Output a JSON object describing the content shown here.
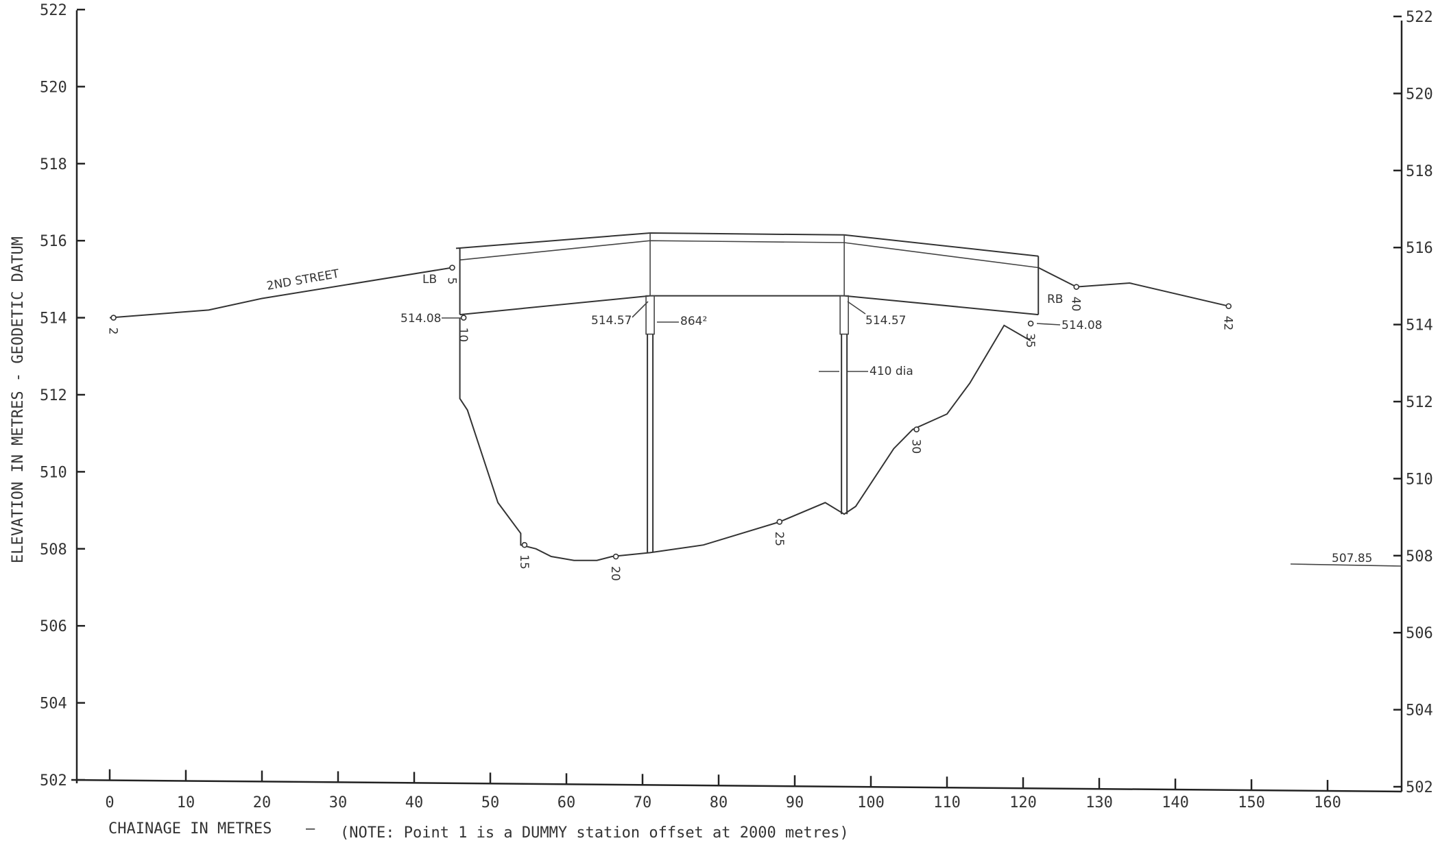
{
  "chart_data": {
    "type": "line",
    "xlabel": "CHAINAGE IN METRES",
    "xlabel_separator": "–",
    "note": "(NOTE: Point 1 is a DUMMY station offset at 2000 metres)",
    "ylabel": "ELEVATION IN METRES - GEODETIC DATUM",
    "xlim": [
      0,
      170
    ],
    "ylim": [
      502,
      522
    ],
    "x_ticks": [
      "0",
      "10",
      "20",
      "30",
      "40",
      "50",
      "60",
      "70",
      "80",
      "90",
      "100",
      "110",
      "120",
      "130",
      "140",
      "150",
      "160"
    ],
    "y_ticks": [
      "502",
      "504",
      "506",
      "508",
      "510",
      "512",
      "514",
      "516",
      "518",
      "520",
      "522"
    ],
    "ground_profile": [
      {
        "x": 0,
        "y": 514.0
      },
      {
        "x": 13,
        "y": 514.2
      },
      {
        "x": 20,
        "y": 514.5
      },
      {
        "x": 45,
        "y": 515.3
      }
    ],
    "right_bank_profile": [
      {
        "x": 122,
        "y": 515.3
      },
      {
        "x": 127,
        "y": 514.8
      },
      {
        "x": 134,
        "y": 514.9
      },
      {
        "x": 147,
        "y": 514.3
      }
    ],
    "channel_profile": [
      {
        "x": 46,
        "y": 514.0
      },
      {
        "x": 46,
        "y": 511.9
      },
      {
        "x": 47,
        "y": 511.6
      },
      {
        "x": 51,
        "y": 509.2
      },
      {
        "x": 54,
        "y": 508.4
      },
      {
        "x": 54,
        "y": 508.1
      },
      {
        "x": 56,
        "y": 508.0
      },
      {
        "x": 58,
        "y": 507.8
      },
      {
        "x": 61,
        "y": 507.7
      },
      {
        "x": 64,
        "y": 507.7
      },
      {
        "x": 66,
        "y": 507.8
      },
      {
        "x": 71,
        "y": 507.9
      },
      {
        "x": 78,
        "y": 508.1
      },
      {
        "x": 88,
        "y": 508.7
      },
      {
        "x": 94,
        "y": 509.2
      },
      {
        "x": 96.5,
        "y": 508.9
      },
      {
        "x": 98,
        "y": 509.1
      },
      {
        "x": 103,
        "y": 510.6
      },
      {
        "x": 105.5,
        "y": 511.1
      },
      {
        "x": 110,
        "y": 511.5
      },
      {
        "x": 113,
        "y": 512.3
      },
      {
        "x": 117.5,
        "y": 513.8
      },
      {
        "x": 121,
        "y": 513.4
      }
    ],
    "bridge_top": [
      {
        "x": 45.5,
        "y": 515.8
      },
      {
        "x": 71,
        "y": 516.2
      },
      {
        "x": 96.5,
        "y": 516.15
      },
      {
        "x": 122,
        "y": 515.6
      }
    ],
    "bridge_rail": [
      {
        "x": 46,
        "y": 515.5
      },
      {
        "x": 71,
        "y": 516.0
      },
      {
        "x": 96.5,
        "y": 515.95
      },
      {
        "x": 122,
        "y": 515.3
      }
    ],
    "bridge_soffit": [
      {
        "x": 46,
        "y": 514.08
      },
      {
        "x": 71,
        "y": 514.57
      },
      {
        "x": 96.5,
        "y": 514.57
      },
      {
        "x": 122,
        "y": 514.08
      }
    ],
    "piers": [
      {
        "x": 71,
        "top": 514.57,
        "bottom": 507.9
      },
      {
        "x": 96.5,
        "top": 514.57,
        "bottom": 508.9
      }
    ],
    "station_points": [
      {
        "label": "2",
        "x": 0.5,
        "y": 514.0
      },
      {
        "label": "5",
        "x": 45,
        "y": 515.3
      },
      {
        "label": "10",
        "x": 46.5,
        "y": 514.0
      },
      {
        "label": "15",
        "x": 54.5,
        "y": 508.1
      },
      {
        "label": "20",
        "x": 66.5,
        "y": 507.8
      },
      {
        "label": "25",
        "x": 88,
        "y": 508.7
      },
      {
        "label": "30",
        "x": 106,
        "y": 511.1
      },
      {
        "label": "35",
        "x": 121,
        "y": 513.85
      },
      {
        "label": "40",
        "x": 127,
        "y": 514.8
      },
      {
        "label": "42",
        "x": 147,
        "y": 514.3
      }
    ],
    "annotations": {
      "street": "2ND STREET",
      "left_bank": "LB",
      "right_bank": "RB",
      "soffit_left": "514.08",
      "soffit_mid_left": "514.57",
      "soffit_mid_right": "514.57",
      "soffit_right": "514.08",
      "pier_area": "864²",
      "pier_dia": "410 dia",
      "water_level": "507.85"
    }
  }
}
